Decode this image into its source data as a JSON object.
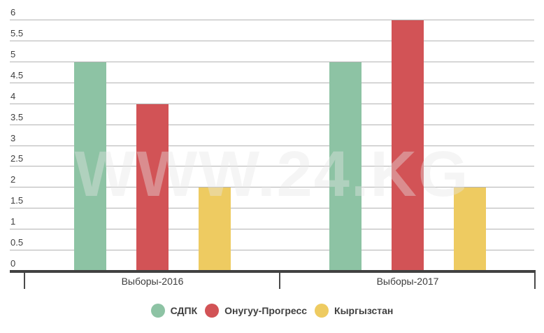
{
  "chart_data": {
    "type": "bar",
    "title": "",
    "xlabel": "",
    "ylabel": "",
    "categories": [
      "Выборы-2016",
      "Выборы-2017"
    ],
    "series": [
      {
        "name": "СДПК",
        "color": "#8dc3a4",
        "values": [
          5,
          5
        ]
      },
      {
        "name": "Онугуу-Прогресс",
        "color": "#d25356",
        "values": [
          4,
          6
        ]
      },
      {
        "name": "Кыргызстан",
        "color": "#eecb61",
        "values": [
          2,
          2
        ]
      }
    ],
    "ylim": [
      0,
      6
    ],
    "ytick_step": 0.5,
    "yticks": [
      "0",
      "0.5",
      "1",
      "1.5",
      "2",
      "2.5",
      "3",
      "3.5",
      "4",
      "4.5",
      "5",
      "5.5",
      "6"
    ],
    "grid": true,
    "legend_position": "bottom",
    "watermark": "WWW.24.KG"
  }
}
